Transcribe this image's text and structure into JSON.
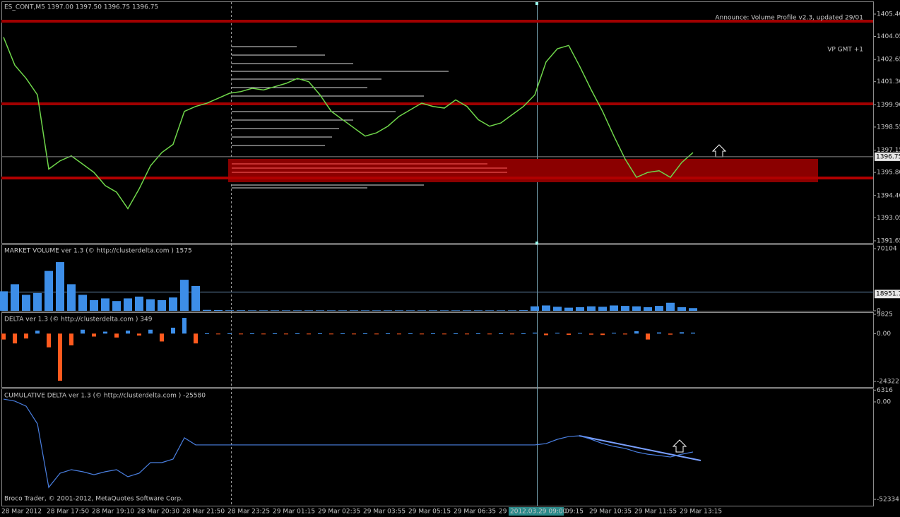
{
  "header": {
    "symbol_line": "ES_CONT,M5  1397.00 1397.50 1396.75 1396.75",
    "announce": "Announce: Volume Profile v2.3, updated 29/01",
    "vp_gmt": "VP GMT +1",
    "footer": "Broco Trader, © 2001-2012, MetaQuotes Software Corp."
  },
  "price_panel": {
    "ylim": [
      1391.52,
      1406.17
    ],
    "yticks": [
      {
        "value": 1405.4,
        "label": "1405.40"
      },
      {
        "value": 1404.05,
        "label": "1404.05"
      },
      {
        "value": 1402.65,
        "label": "1402.65"
      },
      {
        "value": 1401.3,
        "label": "1401.30"
      },
      {
        "value": 1399.9,
        "label": "1399.90"
      },
      {
        "value": 1398.55,
        "label": "1398.55"
      },
      1397.15,
      {
        "value": 1395.8,
        "label": "1395.80"
      },
      {
        "value": 1394.4,
        "label": "1394.40"
      },
      {
        "value": 1393.05,
        "label": "1393.05"
      },
      {
        "value": 1391.65,
        "label": "1391.65"
      }
    ],
    "current_price": 1396.75,
    "color": "#6fd64a",
    "values": [
      1404.0,
      1402.3,
      1401.5,
      1400.5,
      1396.0,
      1396.5,
      1396.8,
      1396.3,
      1395.8,
      1395.0,
      1394.6,
      1393.6,
      1394.8,
      1396.2,
      1397.0,
      1397.5,
      1399.5,
      1399.8,
      1400.0,
      1400.3,
      1400.6,
      1400.7,
      1400.9,
      1400.8,
      1401.0,
      1401.2,
      1401.5,
      1401.3,
      1400.5,
      1399.5,
      1399.0,
      1398.5,
      1398.0,
      1398.2,
      1398.6,
      1399.2,
      1399.6,
      1400.0,
      1399.8,
      1399.7,
      1400.2,
      1399.8,
      1399.0,
      1398.6,
      1398.8,
      1399.3,
      1399.8,
      1400.5,
      1402.5,
      1403.3,
      1403.5,
      1402.2,
      1400.8,
      1399.5,
      1398.0,
      1396.6,
      1395.5,
      1395.8,
      1395.9,
      1395.5,
      1396.4,
      1397.0
    ]
  },
  "volume_panel": {
    "title": "MARKET VOLUME ver 1.3 (© http://clusterdelta.com ) 1575",
    "ylim": [
      0,
      75000
    ],
    "yticks": [
      70104,
      0
    ],
    "level": 18951.7,
    "color": "#3d8ee8",
    "values": [
      22000,
      30000,
      18000,
      20000,
      45000,
      55000,
      30000,
      18000,
      12000,
      14000,
      11000,
      14000,
      16000,
      13000,
      12000,
      15000,
      35000,
      28000,
      1000,
      800,
      600,
      600,
      500,
      500,
      500,
      500,
      500,
      500,
      500,
      500,
      500,
      500,
      500,
      500,
      500,
      500,
      500,
      500,
      500,
      500,
      500,
      500,
      500,
      500,
      500,
      500,
      700,
      5000,
      6000,
      4500,
      3500,
      4000,
      5000,
      4500,
      6000,
      5500,
      5000,
      4000,
      5500,
      9000,
      4000,
      3000
    ]
  },
  "delta_panel": {
    "title": "DELTA ver 1.3 (© http://clusterdelta.com ) 349",
    "ylim": [
      -27200,
      10900
    ],
    "yticks": [
      9825,
      {
        "value": 0,
        "label": "0.00"
      },
      -24322
    ],
    "up_color": "#3d8ee8",
    "down_color": "#ff5a1e",
    "values": [
      -3000,
      -5000,
      -2500,
      1500,
      -7000,
      -24000,
      -6000,
      2000,
      -1500,
      1000,
      -2000,
      1500,
      -1000,
      2000,
      -4000,
      3000,
      8000,
      -5000,
      100,
      -100,
      100,
      -100,
      100,
      -100,
      100,
      -100,
      100,
      -100,
      100,
      -100,
      100,
      -100,
      100,
      -100,
      100,
      -100,
      100,
      -100,
      100,
      -100,
      100,
      -100,
      100,
      -100,
      100,
      -100,
      100,
      500,
      -800,
      400,
      -600,
      300,
      -500,
      -700,
      400,
      -400,
      1200,
      -3000,
      600,
      -500,
      700,
      500
    ]
  },
  "cum_delta_panel": {
    "title": "CUMULATIVE DELTA ver 1.3 (© http://clusterdelta.com ) -25580",
    "ylim": [
      -55745,
      7205
    ],
    "yticks": [
      6316,
      {
        "value": 0,
        "label": "0.00"
      },
      -52334
    ],
    "color": "#4a7fe0",
    "values": [
      1500,
      400,
      -2300,
      -11800,
      -45900,
      -38300,
      -36400,
      -37500,
      -39100,
      -37500,
      -36400,
      -40200,
      -38300,
      -32600,
      -32600,
      -30700,
      -19300,
      -23100,
      -23100,
      -23100,
      -23100,
      -23100,
      -23100,
      -23100,
      -23100,
      -23100,
      -23100,
      -23100,
      -23100,
      -23100,
      -23100,
      -23100,
      -23100,
      -23100,
      -23100,
      -23100,
      -23100,
      -23100,
      -23100,
      -23100,
      -23100,
      -23100,
      -23100,
      -23100,
      -23100,
      -23100,
      -23100,
      -23100,
      -22400,
      -20100,
      -18600,
      -18200,
      -20100,
      -22400,
      -23900,
      -25000,
      -26900,
      -28100,
      -28800,
      -29600,
      -28100,
      -26900
    ]
  },
  "time_axis": {
    "labels": [
      "28 Mar 2012",
      "28 Mar 17:50",
      "28 Mar 19:10",
      "28 Mar 20:30",
      "28 Mar 21:50",
      "28 Mar 23:25",
      "29 Mar 01:15",
      "29 Mar 02:35",
      "29 Mar 03:55",
      "29 Mar 05:15",
      "29 Mar 06:35",
      "29",
      "09:15",
      "29 Mar 10:35",
      "29 Mar 11:55",
      "29 Mar 13:15"
    ],
    "cursor_time": "2012.03.29 09:00"
  }
}
